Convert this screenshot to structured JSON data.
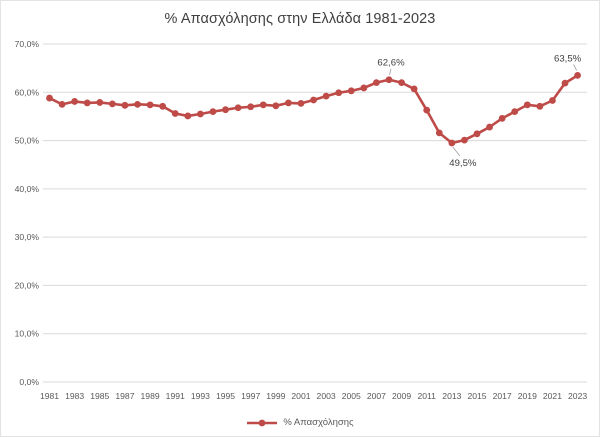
{
  "title": "% Απασχόλησης στην Ελλάδα 1981-2023",
  "legend": {
    "label": "% Απασχόλησης"
  },
  "colors": {
    "line": "#BE4B48",
    "marker": "#BE4B48",
    "grid": "#D9D9D9",
    "title_text": "#404040",
    "axis_text": "#595959",
    "leader_line": "#9e9e9e"
  },
  "chart_data": {
    "type": "line",
    "title": "% Απασχόλησης στην Ελλάδα 1981-2023",
    "xlabel": "",
    "ylabel": "",
    "x": [
      1981,
      1982,
      1983,
      1984,
      1985,
      1986,
      1987,
      1988,
      1989,
      1990,
      1991,
      1992,
      1993,
      1994,
      1995,
      1996,
      1997,
      1998,
      1999,
      2000,
      2001,
      2002,
      2003,
      2004,
      2005,
      2006,
      2007,
      2008,
      2009,
      2010,
      2011,
      2012,
      2013,
      2014,
      2015,
      2016,
      2017,
      2018,
      2019,
      2020,
      2021,
      2022,
      2023
    ],
    "series": [
      {
        "name": "% Απασχόλησης",
        "values": [
          58.8,
          57.5,
          58.1,
          57.8,
          57.9,
          57.6,
          57.3,
          57.5,
          57.4,
          57.1,
          55.6,
          55.1,
          55.5,
          56.0,
          56.4,
          56.8,
          57.0,
          57.4,
          57.2,
          57.8,
          57.7,
          58.4,
          59.2,
          59.9,
          60.3,
          60.9,
          62.0,
          62.6,
          62.0,
          60.7,
          56.3,
          51.6,
          49.5,
          50.1,
          51.4,
          52.8,
          54.6,
          56.0,
          57.4,
          57.1,
          58.3,
          61.9,
          63.5
        ]
      }
    ],
    "ylim": [
      0,
      70
    ],
    "ytick_step": 10,
    "ytick_labels": [
      "0,0%",
      "10,0%",
      "20,0%",
      "30,0%",
      "40,0%",
      "50,0%",
      "60,0%",
      "70,0%"
    ],
    "xtick_labels": [
      "1981",
      "1983",
      "1985",
      "1987",
      "1989",
      "1991",
      "1993",
      "1995",
      "1997",
      "1999",
      "2001",
      "2003",
      "2005",
      "2007",
      "2009",
      "2011",
      "2013",
      "2015",
      "2017",
      "2019",
      "2021",
      "2023"
    ],
    "grid": true,
    "legend_position": "bottom",
    "annotations": [
      {
        "year": 2008,
        "label": "62,6%",
        "position": "above"
      },
      {
        "year": 2013,
        "label": "49,5%",
        "position": "below"
      },
      {
        "year": 2023,
        "label": "63,5%",
        "position": "above"
      }
    ]
  }
}
